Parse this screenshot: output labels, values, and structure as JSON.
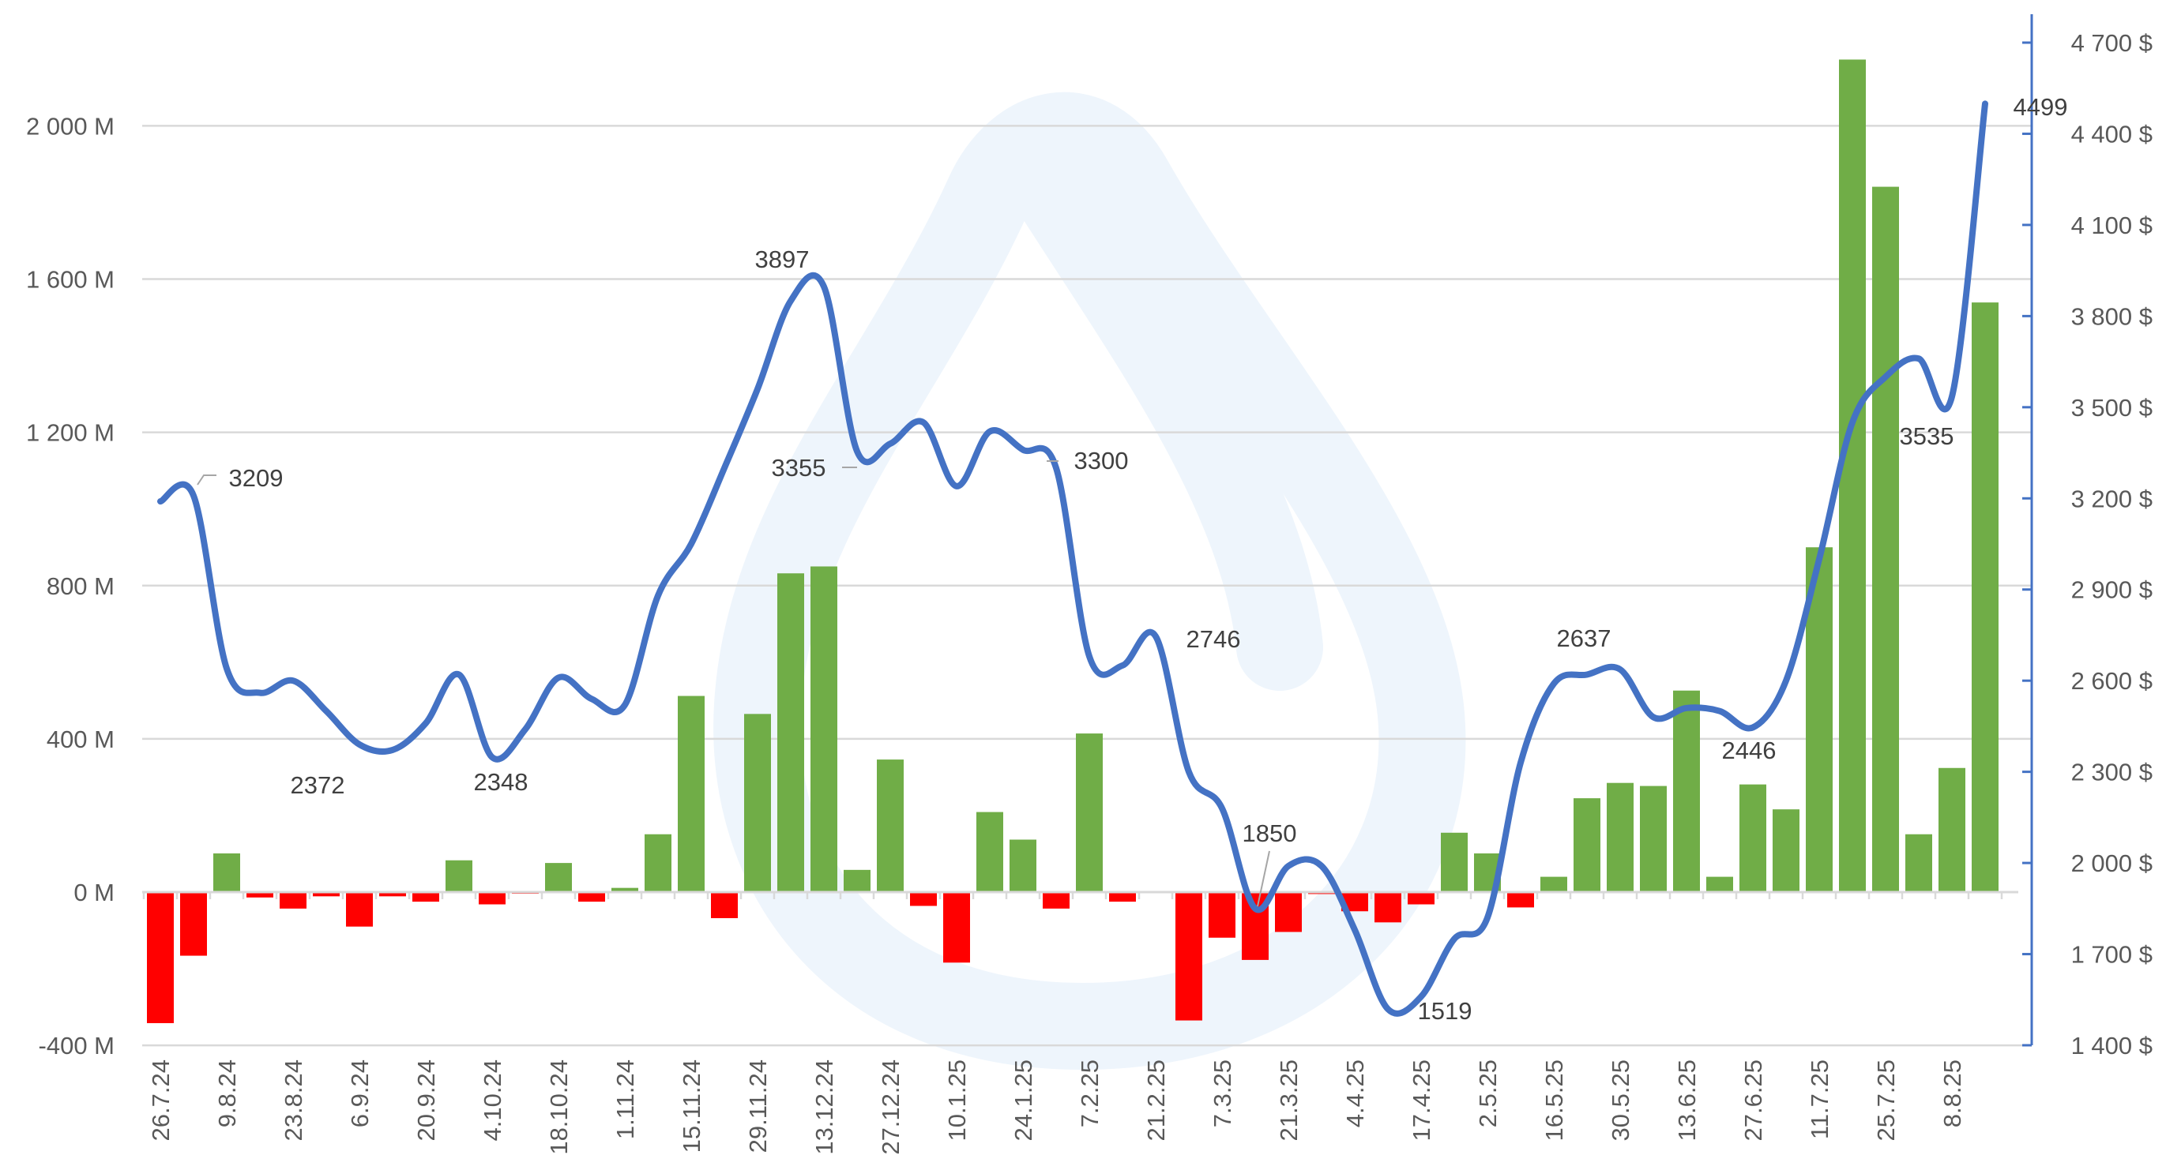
{
  "chart_data": {
    "type": "bar+line",
    "title": "",
    "xlabel": "",
    "ylabel_left": "",
    "ylabel_right": "",
    "grid": true,
    "legend": "none",
    "colors": {
      "positive_bar": "#70ad47",
      "negative_bar": "#ff0000",
      "line": "#4472c4",
      "grid": "#d9d9d9",
      "right_axis": "#4472c4",
      "watermark": "#eef5fc"
    },
    "x_tick_labels": [
      "26.7.24",
      "9.8.24",
      "23.8.24",
      "6.9.24",
      "20.9.24",
      "4.10.24",
      "18.10.24",
      "1.11.24",
      "15.11.24",
      "29.11.24",
      "13.12.24",
      "27.12.24",
      "10.1.25",
      "24.1.25",
      "7.2.25",
      "21.2.25",
      "7.3.25",
      "21.3.25",
      "4.4.25",
      "17.4.25",
      "2.5.25",
      "16.5.25",
      "30.5.25",
      "13.6.25",
      "27.6.25",
      "11.7.25",
      "25.7.25",
      "8.8.25"
    ],
    "left_axis": {
      "ticks": [
        "2 000 M",
        "1 600 M",
        "1 200 M",
        "800 M",
        "400 M",
        "0 M",
        "-400 M"
      ],
      "tick_values": [
        2000,
        1600,
        1200,
        800,
        400,
        0,
        -400
      ],
      "ylim": [
        -400,
        2200
      ]
    },
    "right_axis": {
      "ticks": [
        "4 700 $",
        "4 400 $",
        "4 100 $",
        "3 800 $",
        "3 500 $",
        "3 200 $",
        "2 900 $",
        "2 600 $",
        "2 300 $",
        "2 000 $",
        "1 700 $",
        "1 400 $"
      ],
      "tick_values": [
        4700,
        4400,
        4100,
        3800,
        3500,
        3200,
        2900,
        2600,
        2300,
        2000,
        1700,
        1400
      ],
      "ylim": [
        1400,
        4700
      ]
    },
    "bars_millions": [
      -342,
      -166,
      101,
      -14,
      -43,
      -11,
      -90,
      -11,
      -25,
      83,
      -32,
      -4,
      76,
      -25,
      11,
      151,
      512,
      -68,
      465,
      832,
      850,
      58,
      346,
      -36,
      -184,
      209,
      137,
      -43,
      414,
      -25,
      0,
      -335,
      -119,
      -177,
      -104,
      -5,
      -50,
      -79,
      -32,
      155,
      101,
      -40,
      40,
      245,
      285,
      277,
      526,
      40,
      281,
      216,
      900,
      2173,
      1841,
      151,
      324,
      1539
    ],
    "line_usd": [
      3190,
      3209,
      2640,
      2560,
      2600,
      2500,
      2390,
      2372,
      2460,
      2620,
      2348,
      2440,
      2610,
      2540,
      2520,
      2880,
      3050,
      3300,
      3560,
      3850,
      3897,
      3355,
      3380,
      3450,
      3240,
      3420,
      3360,
      3300,
      2680,
      2650,
      2746,
      2300,
      2180,
      1850,
      1990,
      1990,
      1780,
      1519,
      1560,
      1750,
      1820,
      2330,
      2590,
      2620,
      2637,
      2480,
      2510,
      2500,
      2446,
      2600,
      3000,
      3450,
      3600,
      3660,
      3535,
      4499
    ],
    "data_labels": [
      {
        "index": 1,
        "text": "3209"
      },
      {
        "index": 7,
        "text": "2372"
      },
      {
        "index": 10,
        "text": "2348"
      },
      {
        "index": 20,
        "text": "3897"
      },
      {
        "index": 21,
        "text": "3355"
      },
      {
        "index": 27,
        "text": "3300"
      },
      {
        "index": 30,
        "text": "2746"
      },
      {
        "index": 33,
        "text": "1850"
      },
      {
        "index": 37,
        "text": "1519"
      },
      {
        "index": 44,
        "text": "2637"
      },
      {
        "index": 48,
        "text": "2446"
      },
      {
        "index": 54,
        "text": "3535"
      },
      {
        "index": 55,
        "text": "4499"
      }
    ]
  }
}
